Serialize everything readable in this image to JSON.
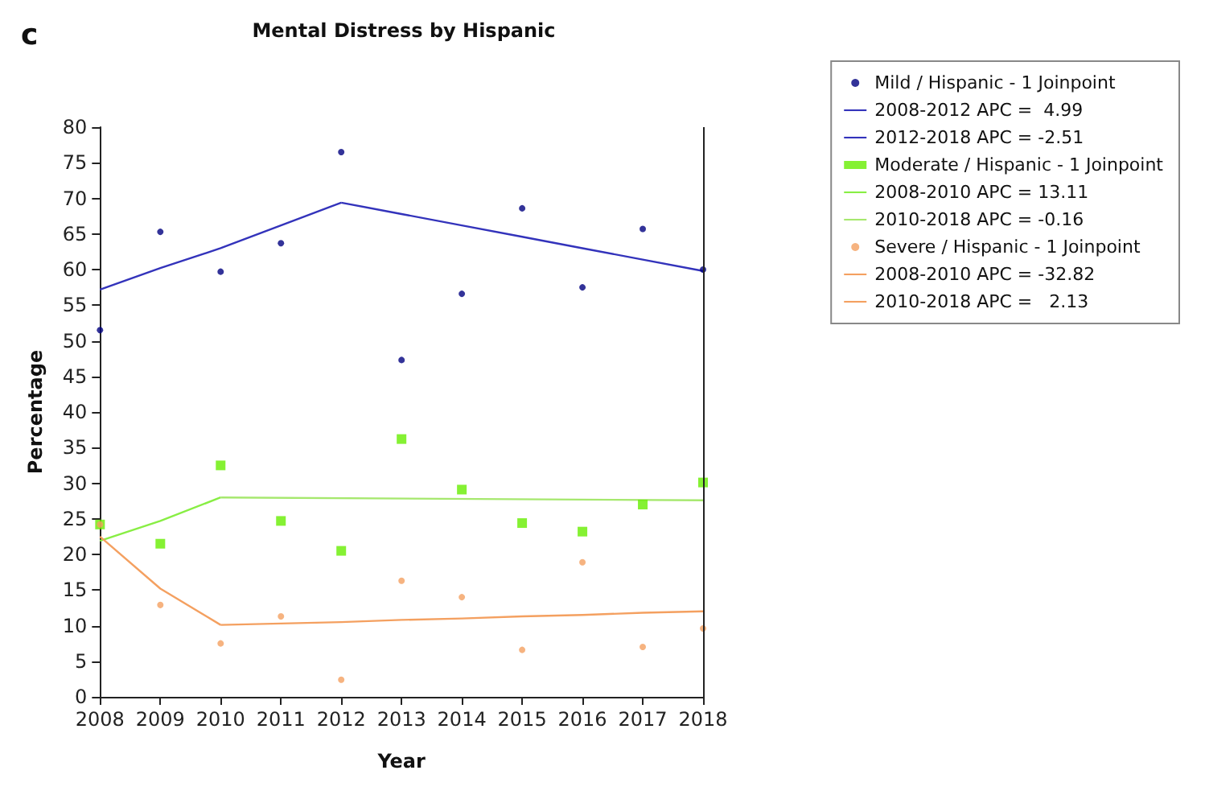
{
  "chart_data": {
    "type": "scatter",
    "title": "Mental Distress by Hispanic",
    "xlabel": "Year",
    "ylabel": "Percentage",
    "annotations": [
      "c"
    ],
    "xlim": [
      2008,
      2018
    ],
    "xticks": [
      2008,
      2009,
      2010,
      2011,
      2012,
      2013,
      2014,
      2015,
      2016,
      2017,
      2018
    ],
    "ylim": [
      0,
      80
    ],
    "yticks": [
      0,
      5,
      10,
      15,
      20,
      25,
      30,
      35,
      40,
      45,
      50,
      55,
      60,
      65,
      70,
      75,
      80
    ],
    "grid": false,
    "legend": "right",
    "series": [
      {
        "name": "Mild / Hispanic - 1 Joinpoint",
        "marker": "circle",
        "color": "#00007f",
        "x": [
          2008,
          2009,
          2010,
          2011,
          2012,
          2013,
          2014,
          2015,
          2016,
          2017,
          2018
        ],
        "values": [
          51.5,
          65.3,
          59.7,
          63.7,
          76.5,
          47.3,
          56.6,
          68.6,
          57.5,
          65.7,
          60.0
        ]
      },
      {
        "name": "2008-2012 APC =  4.99",
        "type": "line",
        "color": "#3333bb",
        "x": [
          2008,
          2009,
          2010,
          2011,
          2012
        ],
        "values": [
          57.2,
          60.2,
          63.0,
          66.2,
          69.4
        ]
      },
      {
        "name": "2012-2018 APC = -2.51",
        "type": "line",
        "color": "#3333bb",
        "x": [
          2012,
          2013,
          2014,
          2015,
          2016,
          2017,
          2018
        ],
        "values": [
          69.4,
          67.8,
          66.2,
          64.6,
          63.0,
          61.4,
          59.8
        ]
      },
      {
        "name": "Moderate / Hispanic - 1 Joinpoint",
        "marker": "square",
        "color": "#66ee00",
        "x": [
          2008,
          2009,
          2010,
          2011,
          2012,
          2013,
          2014,
          2015,
          2016,
          2017,
          2018
        ],
        "values": [
          24.2,
          21.5,
          32.5,
          24.7,
          20.5,
          36.2,
          29.1,
          24.4,
          23.2,
          27.0,
          30.1
        ]
      },
      {
        "name": "2008-2010 APC = 13.11",
        "type": "line",
        "color": "#88ee44",
        "x": [
          2008,
          2009,
          2010
        ],
        "values": [
          21.9,
          24.7,
          28.0
        ]
      },
      {
        "name": "2010-2018 APC = -0.16",
        "type": "line",
        "color": "#a6e86e",
        "x": [
          2010,
          2018
        ],
        "values": [
          28.0,
          27.6
        ]
      },
      {
        "name": "Severe / Hispanic - 1 Joinpoint",
        "marker": "circle",
        "color": "#f4a060",
        "x": [
          2008,
          2009,
          2010,
          2011,
          2012,
          2013,
          2014,
          2015,
          2016,
          2017,
          2018
        ],
        "values": [
          24.2,
          12.9,
          7.5,
          11.3,
          2.4,
          16.3,
          14.0,
          6.6,
          18.9,
          7.0,
          9.6
        ]
      },
      {
        "name": "2008-2010 APC = -32.82",
        "type": "line",
        "color": "#f4a060",
        "x": [
          2008,
          2009,
          2010
        ],
        "values": [
          22.5,
          15.2,
          10.1
        ]
      },
      {
        "name": "2010-2018 APC =   2.13",
        "type": "line",
        "color": "#f4a060",
        "x": [
          2010,
          2011,
          2012,
          2013,
          2014,
          2015,
          2016,
          2017,
          2018
        ],
        "values": [
          10.1,
          10.3,
          10.5,
          10.8,
          11.0,
          11.3,
          11.5,
          11.8,
          12.0
        ]
      }
    ]
  }
}
